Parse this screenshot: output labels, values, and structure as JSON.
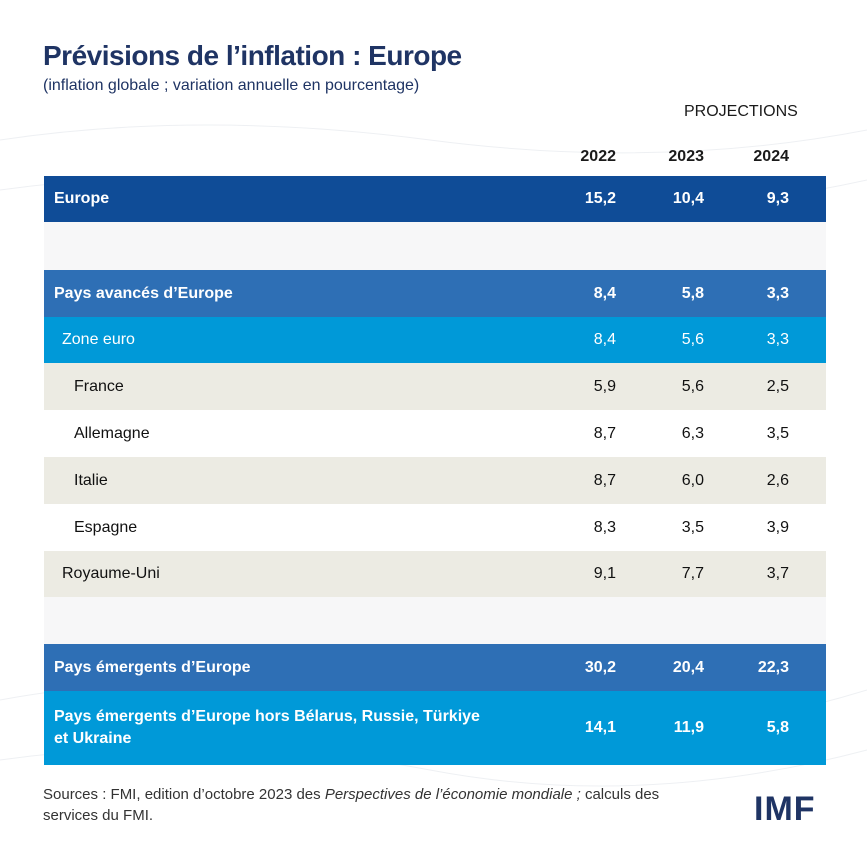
{
  "header": {
    "title": "Prévisions de l’inflation : Europe",
    "subtitle": "(inflation globale ; variation annuelle en pourcentage)",
    "projections": "PROJECTIONS"
  },
  "table": {
    "columns": [
      "2022",
      "2023",
      "2024"
    ],
    "rows": [
      {
        "label": "Europe",
        "values": [
          "15,2",
          "10,4",
          "9,3"
        ]
      },
      {
        "label": "Pays avancés d’Europe",
        "values": [
          "8,4",
          "5,8",
          "3,3"
        ]
      },
      {
        "label": "Zone euro",
        "values": [
          "8,4",
          "5,6",
          "3,3"
        ]
      },
      {
        "label": "France",
        "values": [
          "5,9",
          "5,6",
          "2,5"
        ]
      },
      {
        "label": "Allemagne",
        "values": [
          "8,7",
          "6,3",
          "3,5"
        ]
      },
      {
        "label": "Italie",
        "values": [
          "8,7",
          "6,0",
          "2,6"
        ]
      },
      {
        "label": "Espagne",
        "values": [
          "8,3",
          "3,5",
          "3,9"
        ]
      },
      {
        "label": "Royaume-Uni",
        "values": [
          "9,1",
          "7,7",
          "3,7"
        ]
      },
      {
        "label": "Pays émergents d’Europe",
        "values": [
          "30,2",
          "20,4",
          "22,3"
        ]
      },
      {
        "label": "Pays émergents d’Europe hors Bélarus, Russie, Türkiye et Ukraine",
        "values": [
          "14,1",
          "11,9",
          "5,8"
        ]
      }
    ]
  },
  "sources": {
    "before": "Sources : FMI, edition d’octobre 2023 des ",
    "italic": "Perspectives de l’économie mondiale ;",
    "after": " calculs des services du FMI."
  },
  "logo": "IMF"
}
